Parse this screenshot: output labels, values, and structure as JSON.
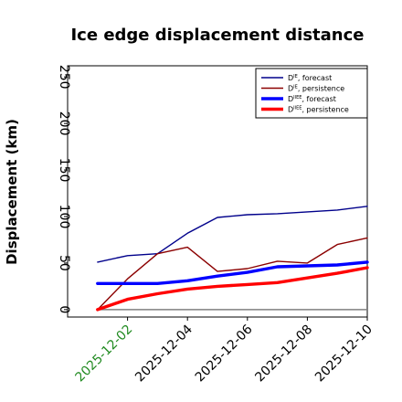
{
  "chart_data": {
    "type": "line",
    "title": "Ice edge displacement distance",
    "xlabel": "",
    "ylabel": "Displacement (km)",
    "x": [
      "2025-12-01",
      "2025-12-02",
      "2025-12-03",
      "2025-12-04",
      "2025-12-05",
      "2025-12-06",
      "2025-12-07",
      "2025-12-08",
      "2025-12-09",
      "2025-12-10"
    ],
    "x_tick_labels": [
      "2025-12-02",
      "2025-12-04",
      "2025-12-06",
      "2025-12-08",
      "2025-12-10"
    ],
    "x_tick_colors": [
      "#228b22",
      "#000000",
      "#000000",
      "#000000",
      "#000000"
    ],
    "xlim": [
      "2025-11-30",
      "2025-12-10"
    ],
    "ylim": [
      -8,
      262
    ],
    "y_ticks": [
      0,
      50,
      100,
      150,
      200,
      250
    ],
    "zero_line_color": "#808080",
    "legend_position": "upper right",
    "series": [
      {
        "name": "D^IE, forecast",
        "legend_base": "D",
        "legend_sup": "IE",
        "legend_rest": ", forecast",
        "color": "#00008b",
        "width": 1.4,
        "values": [
          51,
          58,
          60,
          82,
          99,
          102,
          103,
          105,
          107,
          111
        ]
      },
      {
        "name": "D^IE, persistence",
        "legend_base": "D",
        "legend_sup": "IE",
        "legend_rest": ", persistence",
        "color": "#8b0000",
        "width": 1.4,
        "values": [
          0,
          33,
          60,
          67,
          41,
          44,
          52,
          50,
          70,
          77
        ]
      },
      {
        "name": "D^IIEE, forecast",
        "legend_base": "D",
        "legend_sup": "IIEE",
        "legend_rest": ", forecast",
        "color": "#0000ff",
        "width": 3.4,
        "values": [
          28,
          28,
          28,
          31,
          36,
          40,
          46,
          47,
          48,
          51
        ]
      },
      {
        "name": "D^IIEE, persistence",
        "legend_base": "D",
        "legend_sup": "IIEE",
        "legend_rest": ", persistence",
        "color": "#ff0000",
        "width": 3.4,
        "values": [
          0,
          11,
          17,
          22,
          25,
          27,
          29,
          34,
          39,
          45
        ]
      }
    ]
  }
}
